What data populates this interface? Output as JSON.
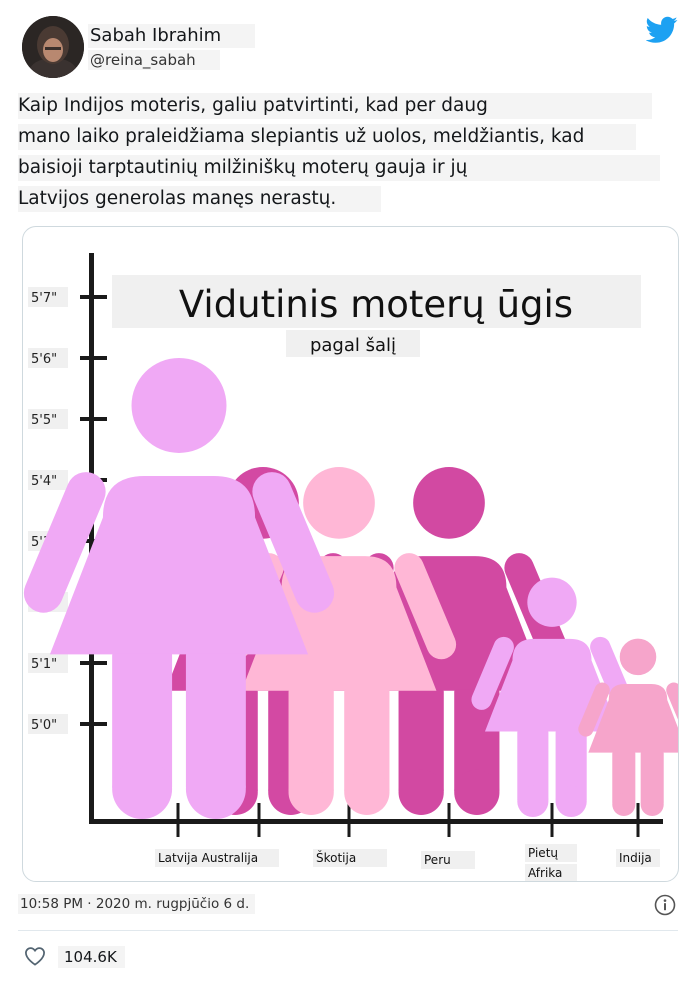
{
  "user": {
    "display_name": "Sabah Ibrahim",
    "handle": "@reina_sabah"
  },
  "tweet": {
    "lines": [
      "Kaip Indijos moteris, galiu patvirtinti, kad per daug",
      "mano laiko praleidžiama slepiantis už uolos, meldžiantis, kad",
      "baisioji tarptautinių milžiniškų moterų gauja ir jų",
      "Latvijos generolas manęs nerastų."
    ]
  },
  "chart_data": {
    "type": "bar",
    "title": "Vidutinis moterų ūgis",
    "subtitle": "pagal šalį",
    "y_ticks": [
      "5'0\"",
      "5'1\"",
      "5'2\"",
      "5'3\"",
      "5'4\"",
      "5'5\"",
      "5'6\"",
      "5'7\""
    ],
    "ylim": [
      "4'10\"",
      "5'8\""
    ],
    "categories": [
      "Latvija",
      "Australija",
      "Škotija",
      "Peru",
      "Pietų Afrika",
      "Indija"
    ],
    "category_labels": [
      "Latvija Australija",
      "Škotija",
      "Peru",
      "Pietų",
      "Afrika",
      "Indija"
    ],
    "values_inches": [
      66.0,
      64.9,
      64.9,
      64.9,
      62.4,
      61.4
    ],
    "figure_colors": [
      "#f0a9f5",
      "#d349a3",
      "#ffb7d6",
      "#d249a2",
      "#f0a9f5",
      "#f6a5cb"
    ],
    "grid": false,
    "legend": "none"
  },
  "footer": {
    "timestamp": "10:58 PM · 2020 m. rugpjūčio 6 d.",
    "likes": "104.6K"
  },
  "icons": {
    "brand": "twitter-bird-icon",
    "info": "info-icon",
    "like": "heart-icon"
  },
  "colors": {
    "twitter_blue": "#1da1f2"
  }
}
